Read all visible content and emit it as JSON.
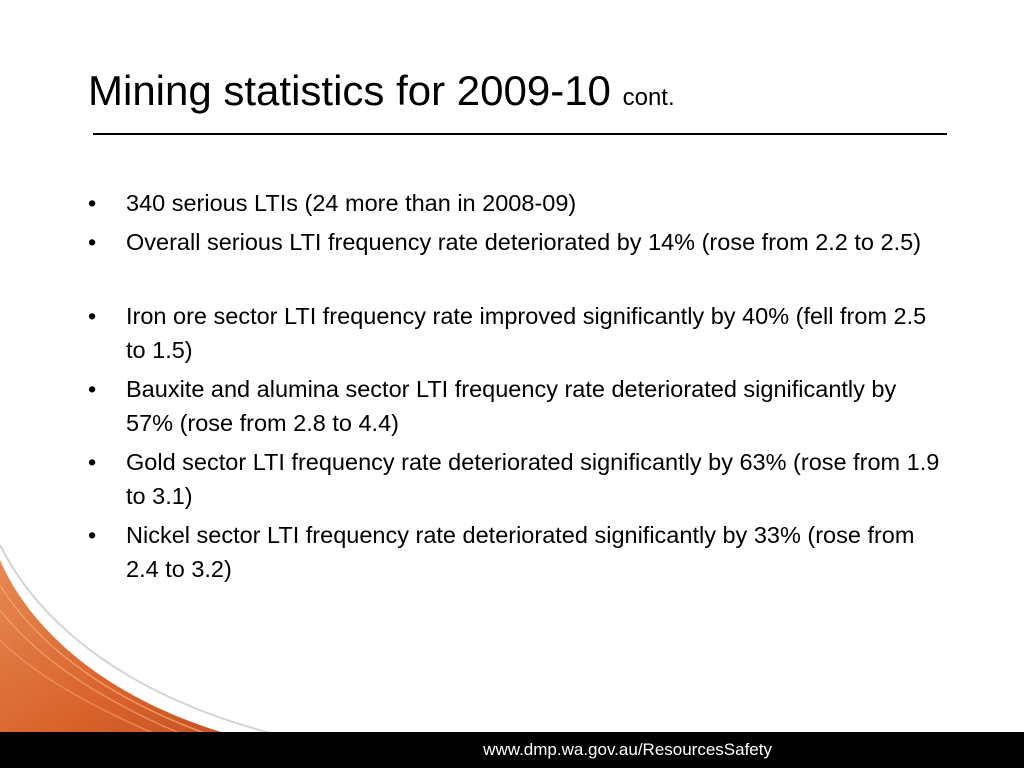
{
  "slide": {
    "title": "Mining statistics for 2009-10",
    "title_suffix": "cont.",
    "bullet_symbol": "•",
    "bullets": [
      "340 serious LTIs (24 more than in 2008-09)",
      "Overall serious LTI frequency rate deteriorated by 14% (rose from 2.2 to 2.5)",
      "Iron ore sector LTI frequency rate improved significantly by 40% (fell from 2.5 to 1.5)",
      "Bauxite and alumina sector LTI frequency rate deteriorated significantly by 57% (rose from 2.8 to 4.4)",
      "Gold sector LTI frequency rate deteriorated significantly by 63% (rose from 1.9 to 3.1)",
      "Nickel sector LTI frequency rate deteriorated significantly by 33% (rose from 2.4 to 3.2)"
    ],
    "footer_url": "www.dmp.wa.gov.au/ResourcesSafety"
  },
  "colors": {
    "footer_bar": "#000000",
    "swoosh_dark": "#b5451b",
    "swoosh_mid": "#d9622b",
    "swoosh_light": "#e58a52",
    "swoosh_line": "#d4d4d4"
  }
}
